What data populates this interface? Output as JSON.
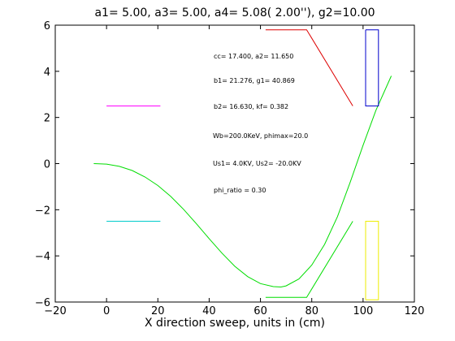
{
  "chart_data": {
    "type": "line",
    "title": "a1= 5.00, a3= 5.00, a4= 5.08( 2.00''), g2=10.00",
    "xlabel": "X direction sweep, units in (cm)",
    "ylabel": "",
    "xlim": [
      -20,
      120
    ],
    "ylim": [
      -6,
      6
    ],
    "xticks": [
      -20,
      0,
      20,
      40,
      60,
      80,
      100,
      120
    ],
    "yticks": [
      -6,
      -4,
      -2,
      0,
      2,
      4,
      6
    ],
    "grid": false,
    "annotations": [
      "cc= 17.400,  a2= 11.650",
      "b1= 21.276,  g1= 40.869",
      "b2= 16.630,  kf= 0.382",
      "Wb=200.0KeV, phimax=20.0",
      "Us1= 4.0KV, Us2= -20.0KV",
      "phi_ratio =  0.30"
    ],
    "series": [
      {
        "color": "#00dd00",
        "x": [
          -5,
          0,
          5,
          10,
          15,
          20,
          25,
          30,
          35,
          40,
          45,
          50,
          55,
          60,
          65,
          68,
          70,
          75,
          80,
          85,
          90,
          95,
          100,
          105,
          111
        ],
        "y": [
          0,
          -0.02,
          -0.12,
          -0.3,
          -0.58,
          -0.95,
          -1.42,
          -1.98,
          -2.6,
          -3.25,
          -3.88,
          -4.45,
          -4.9,
          -5.2,
          -5.33,
          -5.35,
          -5.3,
          -5.0,
          -4.4,
          -3.5,
          -2.3,
          -0.8,
          0.8,
          2.3,
          3.8
        ]
      },
      {
        "color": "#ff00ff",
        "x": [
          0,
          21
        ],
        "y": [
          2.5,
          2.5
        ]
      },
      {
        "color": "#00cccc",
        "x": [
          0,
          21
        ],
        "y": [
          -2.5,
          -2.5
        ]
      },
      {
        "color": "#dd0000",
        "x": [
          62,
          78,
          96
        ],
        "y": [
          5.8,
          5.8,
          2.5
        ]
      },
      {
        "color": "#00dd00",
        "x": [
          62,
          78,
          96
        ],
        "y": [
          -5.8,
          -5.8,
          -2.5
        ]
      },
      {
        "color": "#0000cc",
        "x": [
          101,
          101,
          106,
          106,
          101
        ],
        "y": [
          5.8,
          2.5,
          2.5,
          5.8,
          5.8
        ]
      },
      {
        "color": "#eeee00",
        "x": [
          101,
          101,
          106,
          106,
          101
        ],
        "y": [
          -5.9,
          -2.5,
          -2.5,
          -5.9,
          -5.9
        ]
      }
    ]
  }
}
